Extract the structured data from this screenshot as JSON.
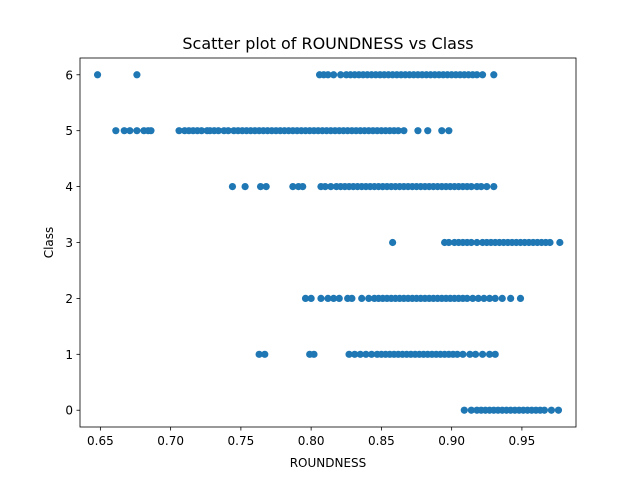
{
  "chart_data": {
    "type": "scatter",
    "title": "Scatter plot of ROUNDNESS vs Class",
    "xlabel": "ROUNDNESS",
    "ylabel": "Class",
    "xlim": [
      0.6355,
      0.9885
    ],
    "ylim": [
      -0.3,
      6.3
    ],
    "xticks": [
      "0.65",
      "0.70",
      "0.75",
      "0.80",
      "0.85",
      "0.90",
      "0.95"
    ],
    "xtick_values": [
      0.65,
      0.7,
      0.75,
      0.8,
      0.85,
      0.9,
      0.95
    ],
    "yticks": [
      "0",
      "1",
      "2",
      "3",
      "4",
      "5",
      "6"
    ],
    "ytick_values": [
      0,
      1,
      2,
      3,
      4,
      5,
      6
    ],
    "grid": false,
    "marker_color": "#1f77b4",
    "series": [
      {
        "x": [
          0.648,
          0.676,
          0.806,
          0.809,
          0.812,
          0.816,
          0.821,
          0.825,
          0.828,
          0.831,
          0.834,
          0.837,
          0.84,
          0.843,
          0.846,
          0.849,
          0.852,
          0.855,
          0.858,
          0.861,
          0.864,
          0.867,
          0.87,
          0.873,
          0.876,
          0.879,
          0.882,
          0.885,
          0.888,
          0.891,
          0.894,
          0.897,
          0.9,
          0.903,
          0.906,
          0.909,
          0.912,
          0.915,
          0.918,
          0.922,
          0.93
        ],
        "y": [
          6,
          6,
          6,
          6,
          6,
          6,
          6,
          6,
          6,
          6,
          6,
          6,
          6,
          6,
          6,
          6,
          6,
          6,
          6,
          6,
          6,
          6,
          6,
          6,
          6,
          6,
          6,
          6,
          6,
          6,
          6,
          6,
          6,
          6,
          6,
          6,
          6,
          6,
          6,
          6,
          6
        ]
      },
      {
        "x": [
          0.661,
          0.667,
          0.671,
          0.676,
          0.681,
          0.684,
          0.686,
          0.706,
          0.71,
          0.713,
          0.716,
          0.719,
          0.722,
          0.726,
          0.728,
          0.731,
          0.734,
          0.738,
          0.741,
          0.745,
          0.748,
          0.751,
          0.754,
          0.757,
          0.76,
          0.763,
          0.766,
          0.769,
          0.772,
          0.775,
          0.778,
          0.781,
          0.784,
          0.787,
          0.79,
          0.793,
          0.796,
          0.799,
          0.802,
          0.805,
          0.808,
          0.811,
          0.814,
          0.817,
          0.82,
          0.823,
          0.826,
          0.829,
          0.832,
          0.835,
          0.838,
          0.841,
          0.844,
          0.847,
          0.85,
          0.853,
          0.856,
          0.859,
          0.862,
          0.866,
          0.876,
          0.883,
          0.893,
          0.898
        ],
        "y": [
          5,
          5,
          5,
          5,
          5,
          5,
          5,
          5,
          5,
          5,
          5,
          5,
          5,
          5,
          5,
          5,
          5,
          5,
          5,
          5,
          5,
          5,
          5,
          5,
          5,
          5,
          5,
          5,
          5,
          5,
          5,
          5,
          5,
          5,
          5,
          5,
          5,
          5,
          5,
          5,
          5,
          5,
          5,
          5,
          5,
          5,
          5,
          5,
          5,
          5,
          5,
          5,
          5,
          5,
          5,
          5,
          5,
          5,
          5,
          5,
          5,
          5,
          5,
          5
        ]
      },
      {
        "x": [
          0.744,
          0.753,
          0.764,
          0.768,
          0.787,
          0.791,
          0.794,
          0.807,
          0.81,
          0.814,
          0.818,
          0.821,
          0.824,
          0.827,
          0.83,
          0.833,
          0.836,
          0.839,
          0.842,
          0.845,
          0.848,
          0.851,
          0.854,
          0.857,
          0.86,
          0.863,
          0.866,
          0.869,
          0.872,
          0.875,
          0.878,
          0.881,
          0.884,
          0.887,
          0.89,
          0.893,
          0.896,
          0.899,
          0.902,
          0.905,
          0.908,
          0.911,
          0.914,
          0.918,
          0.921,
          0.925,
          0.93
        ],
        "y": [
          4,
          4,
          4,
          4,
          4,
          4,
          4,
          4,
          4,
          4,
          4,
          4,
          4,
          4,
          4,
          4,
          4,
          4,
          4,
          4,
          4,
          4,
          4,
          4,
          4,
          4,
          4,
          4,
          4,
          4,
          4,
          4,
          4,
          4,
          4,
          4,
          4,
          4,
          4,
          4,
          4,
          4,
          4,
          4,
          4,
          4,
          4
        ]
      },
      {
        "x": [
          0.858,
          0.895,
          0.898,
          0.902,
          0.905,
          0.908,
          0.911,
          0.914,
          0.918,
          0.922,
          0.925,
          0.928,
          0.931,
          0.934,
          0.937,
          0.94,
          0.943,
          0.946,
          0.949,
          0.952,
          0.955,
          0.958,
          0.961,
          0.964,
          0.967,
          0.97,
          0.977
        ],
        "y": [
          3,
          3,
          3,
          3,
          3,
          3,
          3,
          3,
          3,
          3,
          3,
          3,
          3,
          3,
          3,
          3,
          3,
          3,
          3,
          3,
          3,
          3,
          3,
          3,
          3,
          3,
          3
        ]
      },
      {
        "x": [
          0.796,
          0.8,
          0.807,
          0.812,
          0.816,
          0.82,
          0.826,
          0.829,
          0.836,
          0.841,
          0.845,
          0.848,
          0.851,
          0.854,
          0.857,
          0.86,
          0.863,
          0.866,
          0.869,
          0.872,
          0.875,
          0.878,
          0.881,
          0.884,
          0.887,
          0.89,
          0.893,
          0.896,
          0.899,
          0.902,
          0.905,
          0.908,
          0.911,
          0.915,
          0.919,
          0.923,
          0.927,
          0.931,
          0.936,
          0.942,
          0.949
        ],
        "y": [
          2,
          2,
          2,
          2,
          2,
          2,
          2,
          2,
          2,
          2,
          2,
          2,
          2,
          2,
          2,
          2,
          2,
          2,
          2,
          2,
          2,
          2,
          2,
          2,
          2,
          2,
          2,
          2,
          2,
          2,
          2,
          2,
          2,
          2,
          2,
          2,
          2,
          2,
          2,
          2,
          2
        ]
      },
      {
        "x": [
          0.763,
          0.767,
          0.799,
          0.802,
          0.827,
          0.831,
          0.835,
          0.839,
          0.843,
          0.847,
          0.85,
          0.853,
          0.856,
          0.859,
          0.862,
          0.865,
          0.868,
          0.871,
          0.874,
          0.877,
          0.88,
          0.883,
          0.886,
          0.889,
          0.892,
          0.895,
          0.898,
          0.901,
          0.904,
          0.908,
          0.913,
          0.917,
          0.922,
          0.927,
          0.931
        ],
        "y": [
          1,
          1,
          1,
          1,
          1,
          1,
          1,
          1,
          1,
          1,
          1,
          1,
          1,
          1,
          1,
          1,
          1,
          1,
          1,
          1,
          1,
          1,
          1,
          1,
          1,
          1,
          1,
          1,
          1,
          1,
          1,
          1,
          1,
          1,
          1
        ]
      },
      {
        "x": [
          0.909,
          0.914,
          0.918,
          0.921,
          0.924,
          0.927,
          0.93,
          0.933,
          0.936,
          0.939,
          0.942,
          0.945,
          0.948,
          0.951,
          0.954,
          0.957,
          0.96,
          0.963,
          0.966,
          0.971,
          0.976
        ],
        "y": [
          0,
          0,
          0,
          0,
          0,
          0,
          0,
          0,
          0,
          0,
          0,
          0,
          0,
          0,
          0,
          0,
          0,
          0,
          0,
          0,
          0
        ]
      }
    ]
  }
}
